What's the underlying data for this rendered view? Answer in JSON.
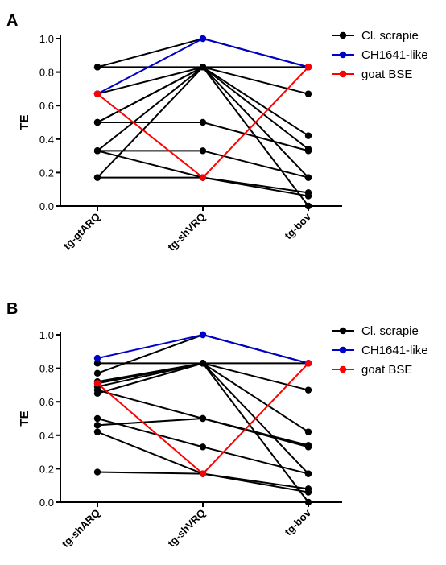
{
  "chart_data": [
    {
      "type": "line",
      "panel": "A",
      "ylabel": "TE",
      "xlabel": "",
      "ylim": [
        0,
        1.0
      ],
      "yticks": [
        "0.0",
        "0.2",
        "0.4",
        "0.6",
        "0.8",
        "1.0"
      ],
      "categories": [
        "tg-gtARQ",
        "tg-shVRQ",
        "tg-bov"
      ],
      "legend": {
        "position": "top-right",
        "entries": [
          {
            "name": "Cl. scrapie",
            "color": "#000000"
          },
          {
            "name": "CH1641-like",
            "color": "#0000cc"
          },
          {
            "name": "goat BSE",
            "color": "#ff0000"
          }
        ]
      },
      "series": [
        {
          "group": "Cl. scrapie",
          "values": [
            0.83,
            0.83,
            0.83
          ]
        },
        {
          "group": "Cl. scrapie",
          "values": [
            0.83,
            1.0,
            0.83
          ]
        },
        {
          "group": "Cl. scrapie",
          "values": [
            0.5,
            0.83,
            0.67
          ]
        },
        {
          "group": "Cl. scrapie",
          "values": [
            0.5,
            0.5,
            0.33
          ]
        },
        {
          "group": "Cl. scrapie",
          "values": [
            0.33,
            0.83,
            0.42
          ]
        },
        {
          "group": "Cl. scrapie",
          "values": [
            0.33,
            0.33,
            0.17
          ]
        },
        {
          "group": "Cl. scrapie",
          "values": [
            0.17,
            0.17,
            0.08
          ]
        },
        {
          "group": "Cl. scrapie",
          "values": [
            0.17,
            0.83,
            0.34
          ]
        },
        {
          "group": "Cl. scrapie",
          "values": [
            0.5,
            0.83,
            0.17
          ]
        },
        {
          "group": "Cl. scrapie",
          "values": [
            0.33,
            0.17,
            0.06
          ]
        },
        {
          "group": "Cl. scrapie",
          "values": [
            0.67,
            0.83,
            0.0
          ]
        },
        {
          "group": "CH1641-like",
          "values": [
            0.67,
            1.0,
            0.83
          ]
        },
        {
          "group": "goat BSE",
          "values": [
            0.67,
            0.17,
            0.83
          ]
        }
      ]
    },
    {
      "type": "line",
      "panel": "B",
      "ylabel": "TE",
      "xlabel": "",
      "ylim": [
        0,
        1.0
      ],
      "yticks": [
        "0.0",
        "0.2",
        "0.4",
        "0.6",
        "0.8",
        "1.0"
      ],
      "categories": [
        "tg-shARQ",
        "tg-shVRQ",
        "tg-bov"
      ],
      "legend": {
        "position": "top-right",
        "entries": [
          {
            "name": "Cl. scrapie",
            "color": "#000000"
          },
          {
            "name": "CH1641-like",
            "color": "#0000cc"
          },
          {
            "name": "goat BSE",
            "color": "#ff0000"
          }
        ]
      },
      "series": [
        {
          "group": "Cl. scrapie",
          "values": [
            0.83,
            0.83,
            0.83
          ]
        },
        {
          "group": "Cl. scrapie",
          "values": [
            0.77,
            1.0,
            0.83
          ]
        },
        {
          "group": "Cl. scrapie",
          "values": [
            0.71,
            0.83,
            0.67
          ]
        },
        {
          "group": "Cl. scrapie",
          "values": [
            0.67,
            0.5,
            0.33
          ]
        },
        {
          "group": "Cl. scrapie",
          "values": [
            0.65,
            0.83,
            0.42
          ]
        },
        {
          "group": "Cl. scrapie",
          "values": [
            0.5,
            0.33,
            0.17
          ]
        },
        {
          "group": "Cl. scrapie",
          "values": [
            0.46,
            0.5,
            0.34
          ]
        },
        {
          "group": "Cl. scrapie",
          "values": [
            0.42,
            0.17,
            0.08
          ]
        },
        {
          "group": "Cl. scrapie",
          "values": [
            0.18,
            0.17,
            0.06
          ]
        },
        {
          "group": "Cl. scrapie",
          "values": [
            0.72,
            0.83,
            0.17
          ]
        },
        {
          "group": "Cl. scrapie",
          "values": [
            0.69,
            0.83,
            0.0
          ]
        },
        {
          "group": "CH1641-like",
          "values": [
            0.86,
            1.0,
            0.83
          ]
        },
        {
          "group": "goat BSE",
          "values": [
            0.71,
            0.17,
            0.83
          ]
        }
      ]
    }
  ]
}
